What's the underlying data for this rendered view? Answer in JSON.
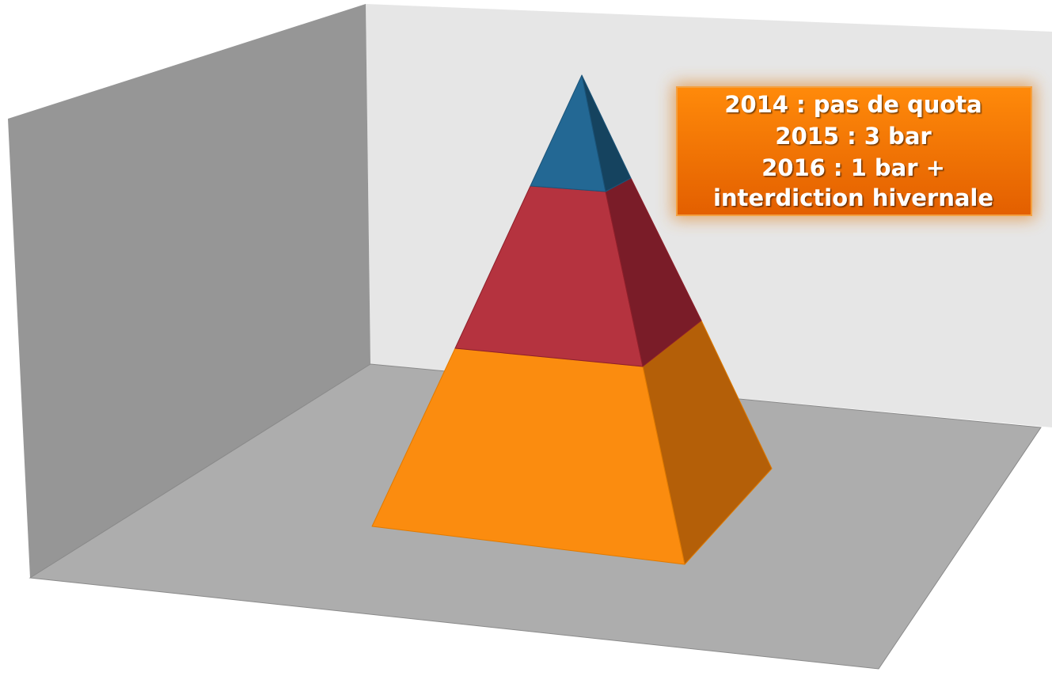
{
  "annotation": {
    "lines": [
      "2014 : pas de quota",
      "2015 : 3 bar",
      "2016 : 1 bar +",
      "interdiction hivernale"
    ]
  }
}
